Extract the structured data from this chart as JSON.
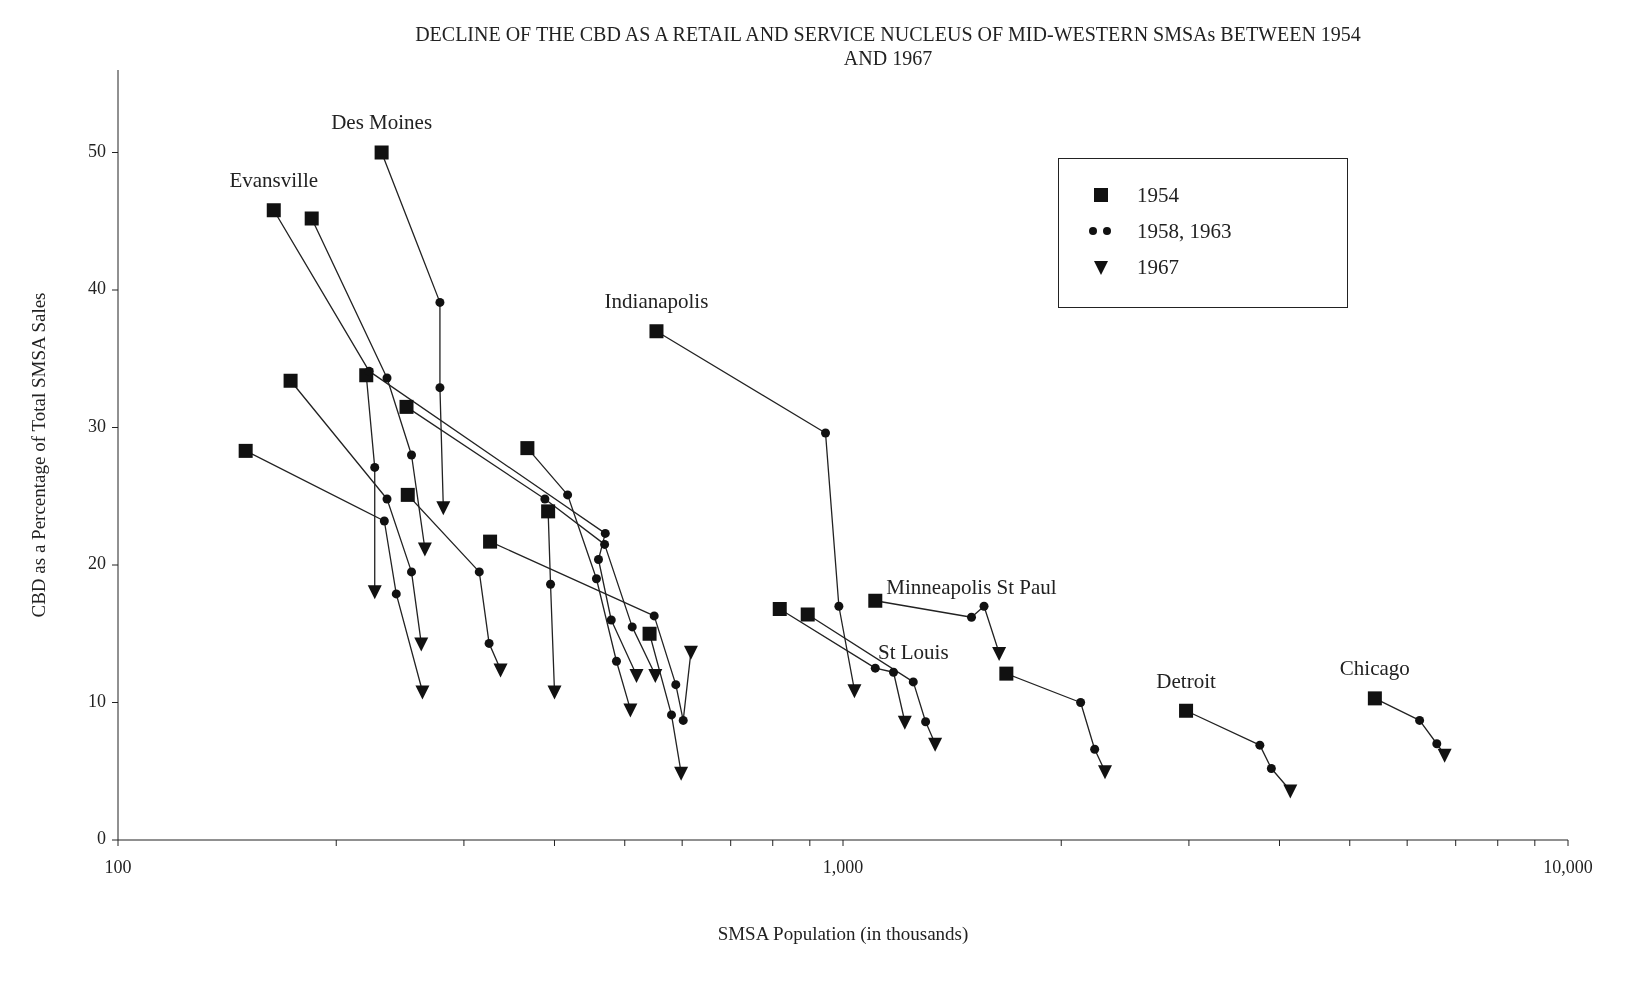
{
  "chart_data": {
    "type": "scatter",
    "title": "DECLINE OF THE CBD AS A RETAIL AND SERVICE NUCLEUS OF MID-WESTERN SMSAs BETWEEN 1954 AND 1967",
    "xlabel": "SMSA Population (in thousands)",
    "ylabel": "CBD as a Percentage of Total SMSA Sales",
    "log": "x",
    "grid": false,
    "legend": "top right",
    "xlim": [
      100,
      10000
    ],
    "ylim": [
      0,
      56
    ],
    "xticks": [
      {
        "value": 100,
        "label": "100"
      },
      {
        "value": 200,
        "label": null
      },
      {
        "value": 300,
        "label": null
      },
      {
        "value": 400,
        "label": null
      },
      {
        "value": 500,
        "label": null
      },
      {
        "value": 600,
        "label": null
      },
      {
        "value": 700,
        "label": null
      },
      {
        "value": 800,
        "label": null
      },
      {
        "value": 900,
        "label": null
      },
      {
        "value": 1000,
        "label": "1,000"
      },
      {
        "value": 2000,
        "label": null
      },
      {
        "value": 3000,
        "label": null
      },
      {
        "value": 4000,
        "label": null
      },
      {
        "value": 5000,
        "label": null
      },
      {
        "value": 6000,
        "label": null
      },
      {
        "value": 7000,
        "label": null
      },
      {
        "value": 8000,
        "label": null
      },
      {
        "value": 9000,
        "label": null
      },
      {
        "value": 10000,
        "label": "10,000"
      }
    ],
    "yticks": [
      0,
      10,
      20,
      30,
      40,
      50
    ],
    "series": [
      {
        "type": "line",
        "marker": "none",
        "color": "#222222",
        "x": [
          150,
          233,
          242,
          263
        ],
        "values": [
          28.3,
          23.2,
          17.9,
          10.8
        ]
      },
      {
        "type": "line",
        "marker": "none",
        "color": "#222222",
        "x": [
          164,
          222,
          470,
          460,
          479,
          519
        ],
        "values": [
          45.8,
          34.1,
          22.3,
          20.4,
          16.0,
          12.0
        ]
      },
      {
        "type": "line",
        "marker": "none",
        "color": "#222222",
        "x": [
          185,
          235,
          254,
          265
        ],
        "values": [
          45.2,
          33.6,
          28.0,
          21.2
        ]
      },
      {
        "type": "line",
        "marker": "none",
        "color": "#222222",
        "x": [
          173,
          235,
          254,
          262
        ],
        "values": [
          33.4,
          24.8,
          19.5,
          14.3
        ]
      },
      {
        "type": "line",
        "marker": "none",
        "color": "#222222",
        "x": [
          220,
          226,
          226
        ],
        "values": [
          33.8,
          27.1,
          18.1
        ]
      },
      {
        "type": "line",
        "marker": "none",
        "color": "#222222",
        "x": [
          231,
          278,
          278,
          281
        ],
        "values": [
          50.0,
          39.1,
          32.9,
          24.2
        ]
      },
      {
        "type": "line",
        "marker": "none",
        "color": "#222222",
        "x": [
          250,
          388,
          469,
          512,
          551
        ],
        "values": [
          31.5,
          24.8,
          21.5,
          15.5,
          12.0
        ]
      },
      {
        "type": "line",
        "marker": "none",
        "color": "#222222",
        "x": [
          251,
          315,
          325,
          337
        ],
        "values": [
          25.1,
          19.5,
          14.3,
          12.4
        ]
      },
      {
        "type": "line",
        "marker": "none",
        "color": "#222222",
        "x": [
          326,
          549,
          588,
          602,
          617
        ],
        "values": [
          21.7,
          16.3,
          11.3,
          8.7,
          13.7
        ]
      },
      {
        "type": "line",
        "marker": "none",
        "color": "#222222",
        "x": [
          367,
          417,
          457,
          487,
          509
        ],
        "values": [
          28.5,
          25.1,
          19.0,
          13.0,
          9.5
        ]
      },
      {
        "type": "line",
        "marker": "none",
        "color": "#222222",
        "x": [
          392,
          395,
          400
        ],
        "values": [
          23.9,
          18.6,
          10.8
        ]
      },
      {
        "type": "line",
        "marker": "none",
        "color": "#222222",
        "x": [
          541,
          580,
          598
        ],
        "values": [
          15.0,
          9.1,
          4.9
        ]
      },
      {
        "type": "line",
        "marker": "none",
        "color": "#222222",
        "x": [
          553,
          946,
          987,
          1037
        ],
        "values": [
          37.0,
          29.6,
          17.0,
          10.9
        ]
      },
      {
        "type": "line",
        "marker": "none",
        "color": "#222222",
        "x": [
          818,
          1108,
          1174,
          1217
        ],
        "values": [
          16.8,
          12.5,
          12.2,
          8.6
        ]
      },
      {
        "type": "line",
        "marker": "none",
        "color": "#222222",
        "x": [
          894,
          1250,
          1300,
          1340
        ],
        "values": [
          16.4,
          11.5,
          8.6,
          7.0
        ]
      },
      {
        "type": "line",
        "marker": "none",
        "color": "#222222",
        "x": [
          1108,
          1504,
          1565,
          1642
        ],
        "values": [
          17.4,
          16.2,
          17.0,
          13.6
        ]
      },
      {
        "type": "line",
        "marker": "none",
        "color": "#222222",
        "x": [
          1680,
          2127,
          2224,
          2298
        ],
        "values": [
          12.1,
          10.0,
          6.6,
          5.0
        ]
      },
      {
        "type": "line",
        "marker": "none",
        "color": "#222222",
        "x": [
          2973,
          3758,
          3898,
          4140
        ],
        "values": [
          9.4,
          6.9,
          5.2,
          3.6
        ]
      },
      {
        "type": "line",
        "marker": "none",
        "color": "#222222",
        "x": [
          5415,
          6242,
          6592,
          6758
        ],
        "values": [
          10.3,
          8.7,
          7.0,
          6.2
        ]
      },
      {
        "type": "scatter",
        "name": "1954",
        "marker": "square",
        "color": "#111111",
        "x": [
          150,
          164,
          185,
          173,
          220,
          231,
          250,
          251,
          326,
          367,
          392,
          553,
          541,
          818,
          894,
          1108,
          1680,
          2973,
          5415
        ],
        "values": [
          28.3,
          45.8,
          45.2,
          33.4,
          33.8,
          50.0,
          31.5,
          25.1,
          21.7,
          28.5,
          23.9,
          37.0,
          15.0,
          16.8,
          16.4,
          17.4,
          12.1,
          9.4,
          10.3
        ]
      },
      {
        "type": "scatter",
        "name": "1958, 1963",
        "marker": "circle",
        "color": "#111111",
        "x": [
          222,
          235,
          278,
          278,
          254,
          226,
          235,
          417,
          388,
          233,
          470,
          469,
          460,
          457,
          254,
          315,
          395,
          242,
          549,
          479,
          512,
          325,
          487,
          588,
          580,
          602,
          946,
          987,
          1108,
          1174,
          1250,
          1300,
          1504,
          1565,
          2127,
          2224,
          3758,
          3898,
          6242,
          6592
        ],
        "values": [
          34.1,
          33.6,
          39.1,
          32.9,
          28.0,
          27.1,
          24.8,
          25.1,
          24.8,
          23.2,
          22.3,
          21.5,
          20.4,
          19.0,
          19.5,
          19.5,
          18.6,
          17.9,
          16.3,
          16.0,
          15.5,
          14.3,
          13.0,
          11.3,
          9.1,
          8.7,
          29.6,
          17.0,
          12.5,
          12.2,
          11.5,
          8.6,
          16.2,
          17.0,
          10.0,
          6.6,
          6.9,
          5.2,
          8.7,
          7.0
        ]
      },
      {
        "type": "scatter",
        "name": "1967",
        "marker": "triangle",
        "color": "#111111",
        "x": [
          281,
          265,
          226,
          262,
          337,
          519,
          551,
          263,
          400,
          509,
          598,
          617,
          1037,
          1217,
          1340,
          1642,
          2298,
          4140,
          6758
        ],
        "values": [
          24.2,
          21.2,
          18.1,
          14.3,
          12.4,
          12.0,
          12.0,
          10.8,
          10.8,
          9.5,
          4.9,
          13.7,
          10.9,
          8.6,
          7.0,
          13.6,
          5.0,
          3.6,
          6.2
        ]
      }
    ],
    "annotations": [
      {
        "text": "Des Moines",
        "x": 231,
        "y": 50.0
      },
      {
        "text": "Evansville",
        "x": 164,
        "y": 45.8
      },
      {
        "text": "Indianapolis",
        "x": 553,
        "y": 37.0
      },
      {
        "text": "Minneapolis St Paul",
        "x": 1504,
        "y": 16.2
      },
      {
        "text": "St Louis",
        "x": 1250,
        "y": 11.5
      },
      {
        "text": "Detroit",
        "x": 2973,
        "y": 9.4
      },
      {
        "text": "Chicago",
        "x": 5415,
        "y": 10.3
      }
    ]
  }
}
